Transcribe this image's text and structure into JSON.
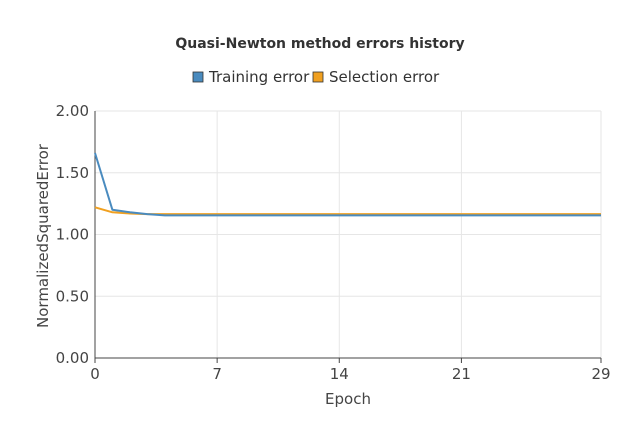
{
  "chart_data": {
    "type": "line",
    "title": "Quasi-Newton method errors history",
    "xlabel": "Epoch",
    "ylabel": "NormalizedSquaredError",
    "xlim": [
      0,
      29
    ],
    "ylim": [
      0,
      2
    ],
    "xticks": [
      0,
      7,
      14,
      21,
      29
    ],
    "yticks": [
      "0.00",
      "0.50",
      "1.00",
      "1.50",
      "2.00"
    ],
    "grid": true,
    "legend_position": "top",
    "x": [
      0,
      1,
      2,
      3,
      4,
      5,
      6,
      7,
      8,
      9,
      10,
      11,
      12,
      13,
      14,
      15,
      16,
      17,
      18,
      19,
      20,
      21,
      22,
      23,
      24,
      25,
      26,
      27,
      28,
      29
    ],
    "series": [
      {
        "name": "Training error",
        "color": "#4a8bbf",
        "values": [
          1.66,
          1.2,
          1.18,
          1.165,
          1.155,
          1.155,
          1.155,
          1.155,
          1.155,
          1.155,
          1.155,
          1.155,
          1.155,
          1.155,
          1.155,
          1.155,
          1.155,
          1.155,
          1.155,
          1.155,
          1.155,
          1.155,
          1.155,
          1.155,
          1.155,
          1.155,
          1.155,
          1.155,
          1.155,
          1.155
        ]
      },
      {
        "name": "Selection error",
        "color": "#f0a020",
        "values": [
          1.22,
          1.18,
          1.17,
          1.165,
          1.165,
          1.165,
          1.165,
          1.165,
          1.165,
          1.165,
          1.165,
          1.165,
          1.165,
          1.165,
          1.165,
          1.165,
          1.165,
          1.165,
          1.165,
          1.165,
          1.165,
          1.165,
          1.165,
          1.165,
          1.165,
          1.165,
          1.165,
          1.165,
          1.165,
          1.165
        ]
      }
    ]
  }
}
